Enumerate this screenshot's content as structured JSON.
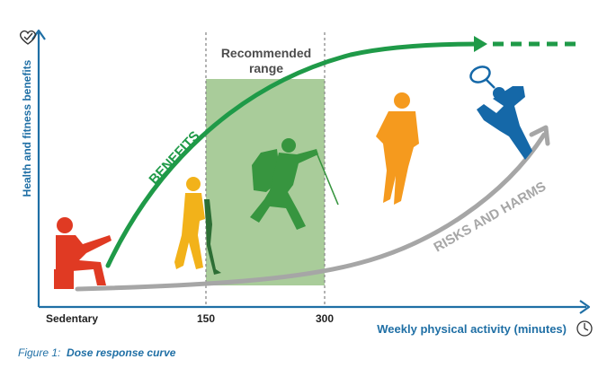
{
  "y_axis_label": "Health and fitness benefits",
  "x_axis_label": "Weekly physical activity (minutes)",
  "x_ticks": [
    "Sedentary",
    "150",
    "300"
  ],
  "range_label_line1": "Recommended",
  "range_label_line2": "range",
  "benefits_label": "BENEFITS",
  "risks_label": "RISKS AND HARMS",
  "caption_prefix": "Figure 1:",
  "caption_title": "Dose response curve",
  "colors": {
    "axis": "#1f6fa5",
    "benefits": "#1f9a48",
    "risks": "#a6a6a6",
    "range_fill": "#a9cc9a",
    "sedentary": "#e03a23",
    "walker": "#f2b21a",
    "hiker": "#37953f",
    "runner": "#f59a1e",
    "tennis": "#1568a8"
  },
  "icons": [
    "heart-check-icon",
    "clock-icon"
  ]
}
